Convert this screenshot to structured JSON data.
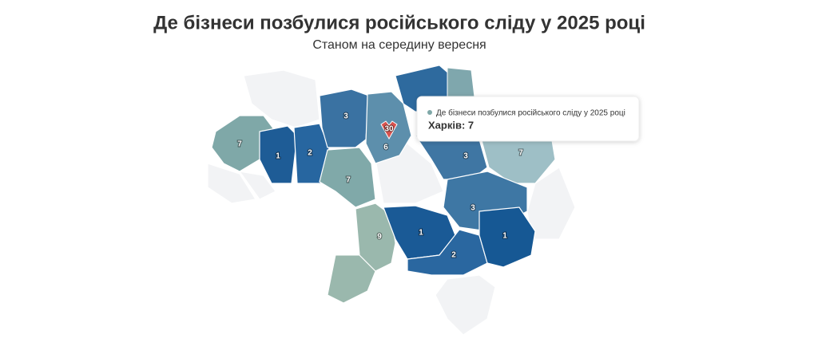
{
  "title": "Де бізнеси позбулися російського сліду у 2025 році",
  "subtitle": "Станом на середину вересня",
  "regions": [
    {
      "value": 7,
      "color": "#7fa8a8"
    },
    {
      "value": 1,
      "color": "#1e5c96"
    },
    {
      "value": 2,
      "color": "#2766a0"
    },
    {
      "value": 3,
      "color": "#3a72a2"
    },
    {
      "value": 6,
      "color": "#5d8fac"
    },
    {
      "value": 7,
      "color": "#80a9a9"
    },
    {
      "value": 3,
      "color": "#3f76a3"
    },
    {
      "value": 7,
      "color": "#9ebfc6"
    },
    {
      "value": 3,
      "color": "#3e77a4"
    },
    {
      "value": 9,
      "color": "#9ab8ad"
    },
    {
      "value": 1,
      "color": "#1a5a96"
    },
    {
      "value": 2,
      "color": "#2a67a0"
    },
    {
      "value": 1,
      "color": "#165894"
    },
    {
      "value": 30,
      "color": "#d9534f"
    }
  ],
  "tooltip": {
    "series": "Де бізнеси позбулися російського сліду у 2025 році",
    "label": "Харків: 7"
  }
}
